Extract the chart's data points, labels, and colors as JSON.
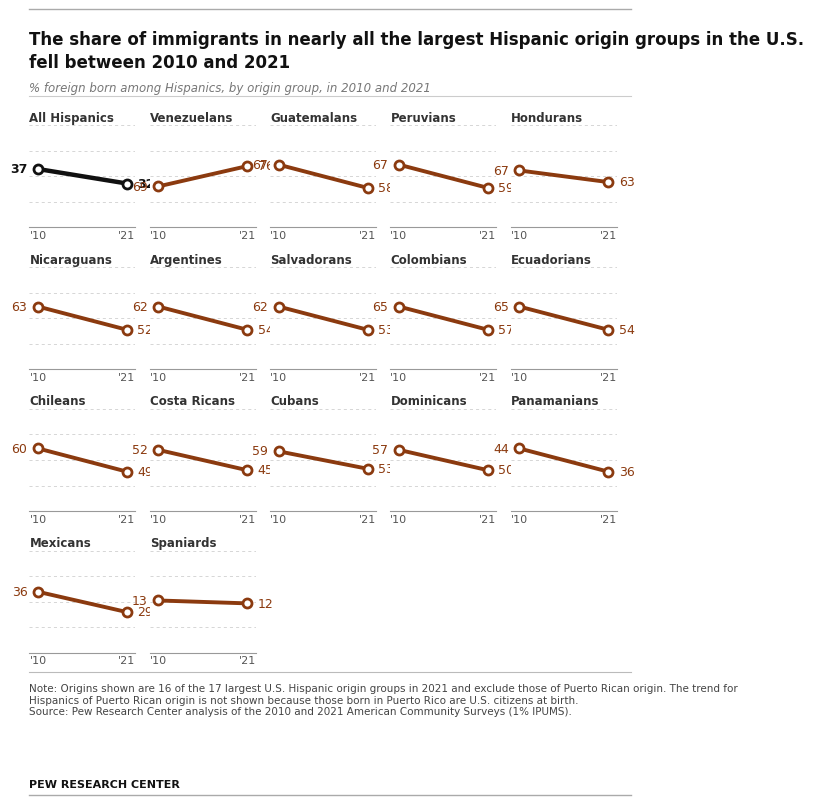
{
  "title_line1": "The share of immigrants in nearly all the largest Hispanic origin groups in the U.S.",
  "title_line2": "fell between 2010 and 2021",
  "subtitle": "% foreign born among Hispanics, by origin group, in 2010 and 2021",
  "note": "Note: Origins shown are 16 of the 17 largest U.S. Hispanic origin groups in 2021 and exclude those of Puerto Rican origin. The trend for\nHispanics of Puerto Rican origin is not shown because those born in Puerto Rico are U.S. citizens at birth.\nSource: Pew Research Center analysis of the 2010 and 2021 American Community Surveys (1% IPUMS).",
  "source_label": "PEW RESEARCH CENTER",
  "groups": [
    {
      "name": "All Hispanics",
      "val2010": 37,
      "val2021": 32,
      "color": "#111111",
      "bold": true
    },
    {
      "name": "Venezuelans",
      "val2010": 69,
      "val2021": 76,
      "color": "#8B3A0F",
      "bold": false
    },
    {
      "name": "Guatemalans",
      "val2010": 67,
      "val2021": 58,
      "color": "#8B3A0F",
      "bold": false
    },
    {
      "name": "Peruvians",
      "val2010": 67,
      "val2021": 59,
      "color": "#8B3A0F",
      "bold": false
    },
    {
      "name": "Hondurans",
      "val2010": 67,
      "val2021": 63,
      "color": "#8B3A0F",
      "bold": false
    },
    {
      "name": "Nicaraguans",
      "val2010": 63,
      "val2021": 52,
      "color": "#8B3A0F",
      "bold": false
    },
    {
      "name": "Argentines",
      "val2010": 62,
      "val2021": 54,
      "color": "#8B3A0F",
      "bold": false
    },
    {
      "name": "Salvadorans",
      "val2010": 62,
      "val2021": 53,
      "color": "#8B3A0F",
      "bold": false
    },
    {
      "name": "Colombians",
      "val2010": 65,
      "val2021": 57,
      "color": "#8B3A0F",
      "bold": false
    },
    {
      "name": "Ecuadorians",
      "val2010": 65,
      "val2021": 54,
      "color": "#8B3A0F",
      "bold": false
    },
    {
      "name": "Chileans",
      "val2010": 60,
      "val2021": 49,
      "color": "#8B3A0F",
      "bold": false
    },
    {
      "name": "Costa Ricans",
      "val2010": 52,
      "val2021": 45,
      "color": "#8B3A0F",
      "bold": false
    },
    {
      "name": "Cubans",
      "val2010": 59,
      "val2021": 53,
      "color": "#8B3A0F",
      "bold": false
    },
    {
      "name": "Dominicans",
      "val2010": 57,
      "val2021": 50,
      "color": "#8B3A0F",
      "bold": false
    },
    {
      "name": "Panamanians",
      "val2010": 44,
      "val2021": 36,
      "color": "#8B3A0F",
      "bold": false
    },
    {
      "name": "Mexicans",
      "val2010": 36,
      "val2021": 29,
      "color": "#8B3A0F",
      "bold": false
    },
    {
      "name": "Spaniards",
      "val2010": 13,
      "val2021": 12,
      "color": "#8B3A0F",
      "bold": false
    }
  ],
  "bg_color": "#FFFFFF",
  "dashed_line_color": "#CCCCCC",
  "title_fontsize": 12,
  "subtitle_fontsize": 8.5,
  "label_fontsize": 8.5,
  "tick_fontsize": 8,
  "value_fontsize": 9,
  "note_fontsize": 7.5,
  "line_width": 2.8,
  "marker_size": 6.5
}
